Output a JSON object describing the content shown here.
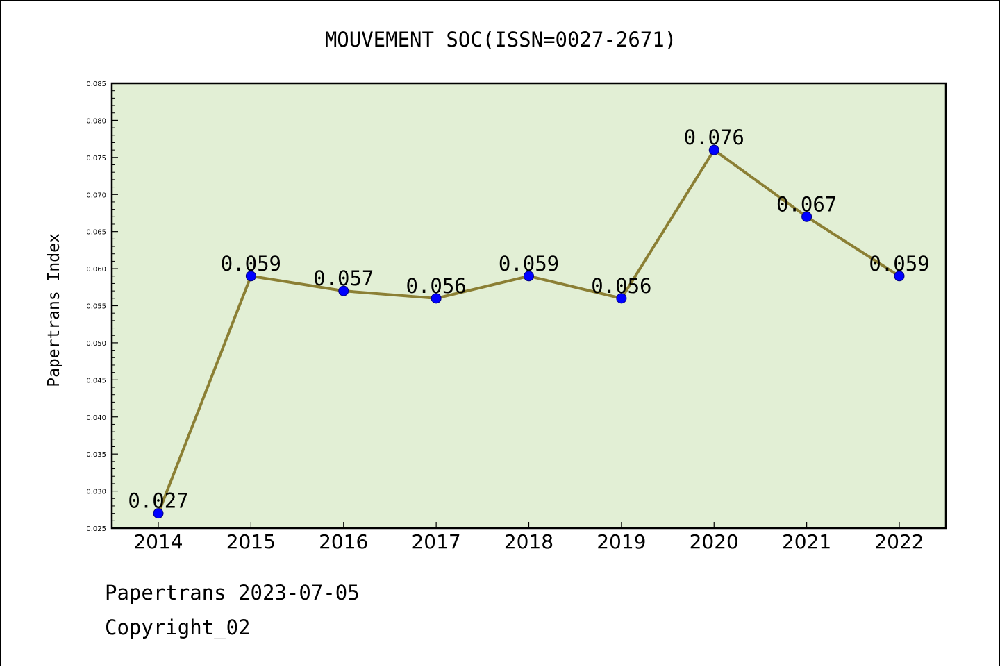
{
  "chart_data": {
    "type": "line",
    "title": "MOUVEMENT SOC(ISSN=0027-2671)",
    "xlabel": "",
    "ylabel": "Papertrans Index",
    "categories": [
      "2014",
      "2015",
      "2016",
      "2017",
      "2018",
      "2019",
      "2020",
      "2021",
      "2022"
    ],
    "series": [
      {
        "values": [
          0.027,
          0.059,
          0.057,
          0.056,
          0.059,
          0.056,
          0.076,
          0.067,
          0.059
        ],
        "data_labels": [
          "0.027",
          "0.059",
          "0.057",
          "0.056",
          "0.059",
          "0.056",
          "0.076",
          "0.067",
          "0.059"
        ]
      }
    ],
    "ylim": [
      0.025,
      0.085
    ],
    "yticks": [
      "0.025",
      "0.030",
      "0.035",
      "0.040",
      "0.045",
      "0.050",
      "0.055",
      "0.060",
      "0.065",
      "0.070",
      "0.075",
      "0.080",
      "0.085"
    ],
    "grid": false,
    "legend": "none",
    "colors": {
      "plot_background": "#e2efd5",
      "line": "#8b7f34",
      "marker": "#0000ff",
      "axes": "#000000"
    }
  },
  "footer": {
    "line1": "Papertrans 2023-07-05",
    "line2": "Copyright_02"
  }
}
